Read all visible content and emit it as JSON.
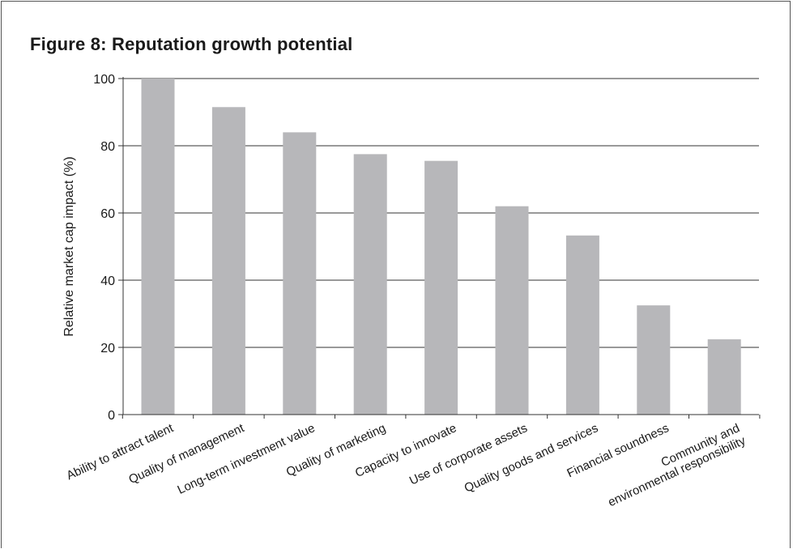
{
  "chart_data": {
    "type": "bar",
    "title": "Figure 8: Reputation growth potential",
    "xlabel": "",
    "ylabel": "Relative market cap impact (%)",
    "ylim": [
      0,
      100
    ],
    "yticks": [
      0,
      20,
      40,
      60,
      80,
      100
    ],
    "grid": true,
    "categories": [
      [
        "Ability to attract talent"
      ],
      [
        "Quality of management"
      ],
      [
        "Long-term investment value"
      ],
      [
        "Quality of marketing"
      ],
      [
        "Capacity to innovate"
      ],
      [
        "Use of corporate assets"
      ],
      [
        "Quality goods and services"
      ],
      [
        "Financial soundness"
      ],
      [
        "Community and",
        "environmental responsibility"
      ]
    ],
    "values": [
      100,
      91.5,
      84,
      77.5,
      75.5,
      62,
      53.3,
      32.5,
      22.4
    ],
    "bar_color": "#b7b7ba"
  }
}
